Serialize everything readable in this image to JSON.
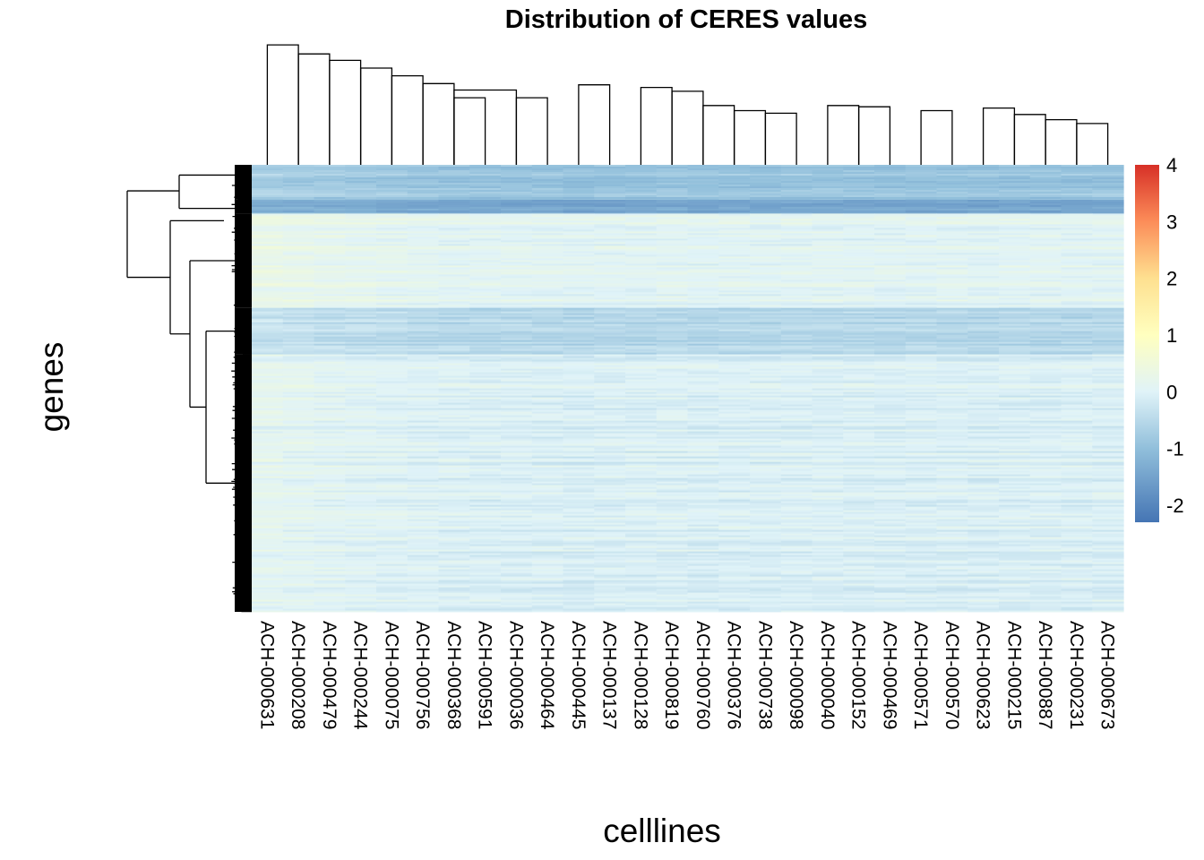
{
  "chart_data": {
    "type": "heatmap",
    "title": "Distribution of CERES values",
    "xlabel": "celllines",
    "ylabel": "genes",
    "columns": [
      "ACH-000631",
      "ACH-000208",
      "ACH-000479",
      "ACH-000244",
      "ACH-000075",
      "ACH-000756",
      "ACH-000368",
      "ACH-000591",
      "ACH-000036",
      "ACH-000464",
      "ACH-000445",
      "ACH-000137",
      "ACH-000128",
      "ACH-000819",
      "ACH-000760",
      "ACH-000376",
      "ACH-000738",
      "ACH-000098",
      "ACH-000040",
      "ACH-000152",
      "ACH-000469",
      "ACH-000571",
      "ACH-000570",
      "ACH-000623",
      "ACH-000215",
      "ACH-000887",
      "ACH-000231",
      "ACH-000673"
    ],
    "row_clusters": [
      {
        "share": 0.078,
        "value": -0.85
      },
      {
        "share": 0.031,
        "value": -1.35
      },
      {
        "share": 0.211,
        "value": 0.1
      },
      {
        "share": 0.104,
        "value": -0.5
      },
      {
        "share": 0.576,
        "value": -0.05
      }
    ],
    "column_offsets": [
      0.18,
      0.14,
      0.1,
      0.08,
      0.05,
      0.02,
      0,
      -0.02,
      -0.01,
      -0.03,
      -0.04,
      -0.02,
      -0.03,
      -0.01,
      -0.04,
      -0.02,
      -0.03,
      -0.01,
      -0.02,
      -0.03,
      -0.04,
      -0.03,
      -0.02,
      -0.04,
      -0.03,
      -0.02,
      -0.03,
      -0.02
    ],
    "color_scale": {
      "min": -2.3,
      "max": 4,
      "ticks": [
        "4",
        "3",
        "2",
        "1",
        "0",
        "-1",
        "-2"
      ],
      "tick_values": [
        4,
        3,
        2,
        1,
        0,
        -1,
        -2
      ],
      "colors": [
        "#4575b4",
        "#91bfdb",
        "#e0f3f8",
        "#ffffbf",
        "#fee090",
        "#fc8d59",
        "#d73027"
      ],
      "color_stops": [
        -2.3,
        -1.0,
        0.0,
        1.0,
        2.0,
        3.0,
        4.0
      ]
    },
    "column_dendrogram": [
      {
        "a": 0,
        "b": 1,
        "h": 0.93
      },
      {
        "a": 1,
        "b": 2,
        "h": 0.86
      },
      {
        "a": 2,
        "b": 3,
        "h": 0.81
      },
      {
        "a": 3,
        "b": 4,
        "h": 0.75
      },
      {
        "a": 4,
        "b": 5,
        "h": 0.69
      },
      {
        "a": 5,
        "b": 6,
        "h": 0.63
      },
      {
        "a": 6,
        "b": 8,
        "h": 0.58
      },
      {
        "a": 6,
        "b": 7,
        "h": 0.52
      },
      {
        "a": 8,
        "b": 9,
        "h": 0.52
      },
      {
        "a": 10,
        "b": 11,
        "h": 0.62
      },
      {
        "a": 12,
        "b": 13,
        "h": 0.6
      },
      {
        "a": 13,
        "b": 14,
        "h": 0.57
      },
      {
        "a": 14,
        "b": 15,
        "h": 0.46
      },
      {
        "a": 15,
        "b": 16,
        "h": 0.42
      },
      {
        "a": 16,
        "b": 17,
        "h": 0.4
      },
      {
        "a": 18,
        "b": 19,
        "h": 0.46
      },
      {
        "a": 19,
        "b": 20,
        "h": 0.45
      },
      {
        "a": 21,
        "b": 22,
        "h": 0.42
      },
      {
        "a": 23,
        "b": 24,
        "h": 0.44
      },
      {
        "a": 24,
        "b": 25,
        "h": 0.39
      },
      {
        "a": 25,
        "b": 26,
        "h": 0.35
      },
      {
        "a": 26,
        "b": 27,
        "h": 0.32
      }
    ]
  }
}
